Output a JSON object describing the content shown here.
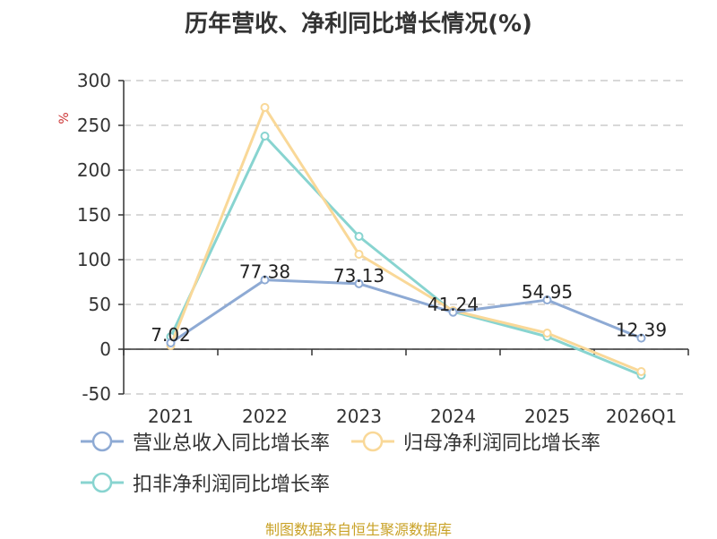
{
  "chart_data": {
    "type": "line",
    "title": "历年营收、净利同比增长情况(%)",
    "unit_label": "%",
    "categories": [
      "2021",
      "2022",
      "2023",
      "2024",
      "2025",
      "2026Q1"
    ],
    "ylim": [
      -50,
      300
    ],
    "yticks": [
      -50,
      0,
      50,
      100,
      150,
      200,
      250,
      300
    ],
    "grid": true,
    "legend_position": "bottom",
    "series": [
      {
        "name": "营业总收入同比增长率",
        "color": "#8eaad4",
        "values": [
          7.02,
          77.38,
          73.13,
          41.24,
          54.95,
          12.39
        ],
        "data_labels": [
          "7.02",
          "77.38",
          "73.13",
          "41.24",
          "54.95",
          "12.39"
        ]
      },
      {
        "name": "归母净利润同比增长率",
        "color": "#f9d898",
        "values": [
          4,
          270,
          106,
          43,
          18,
          -25
        ]
      },
      {
        "name": "扣非净利润同比增长率",
        "color": "#88d4d0",
        "values": [
          14,
          238,
          126,
          42,
          14,
          -29
        ]
      }
    ]
  },
  "source_text": "制图数据来自恒生聚源数据库"
}
